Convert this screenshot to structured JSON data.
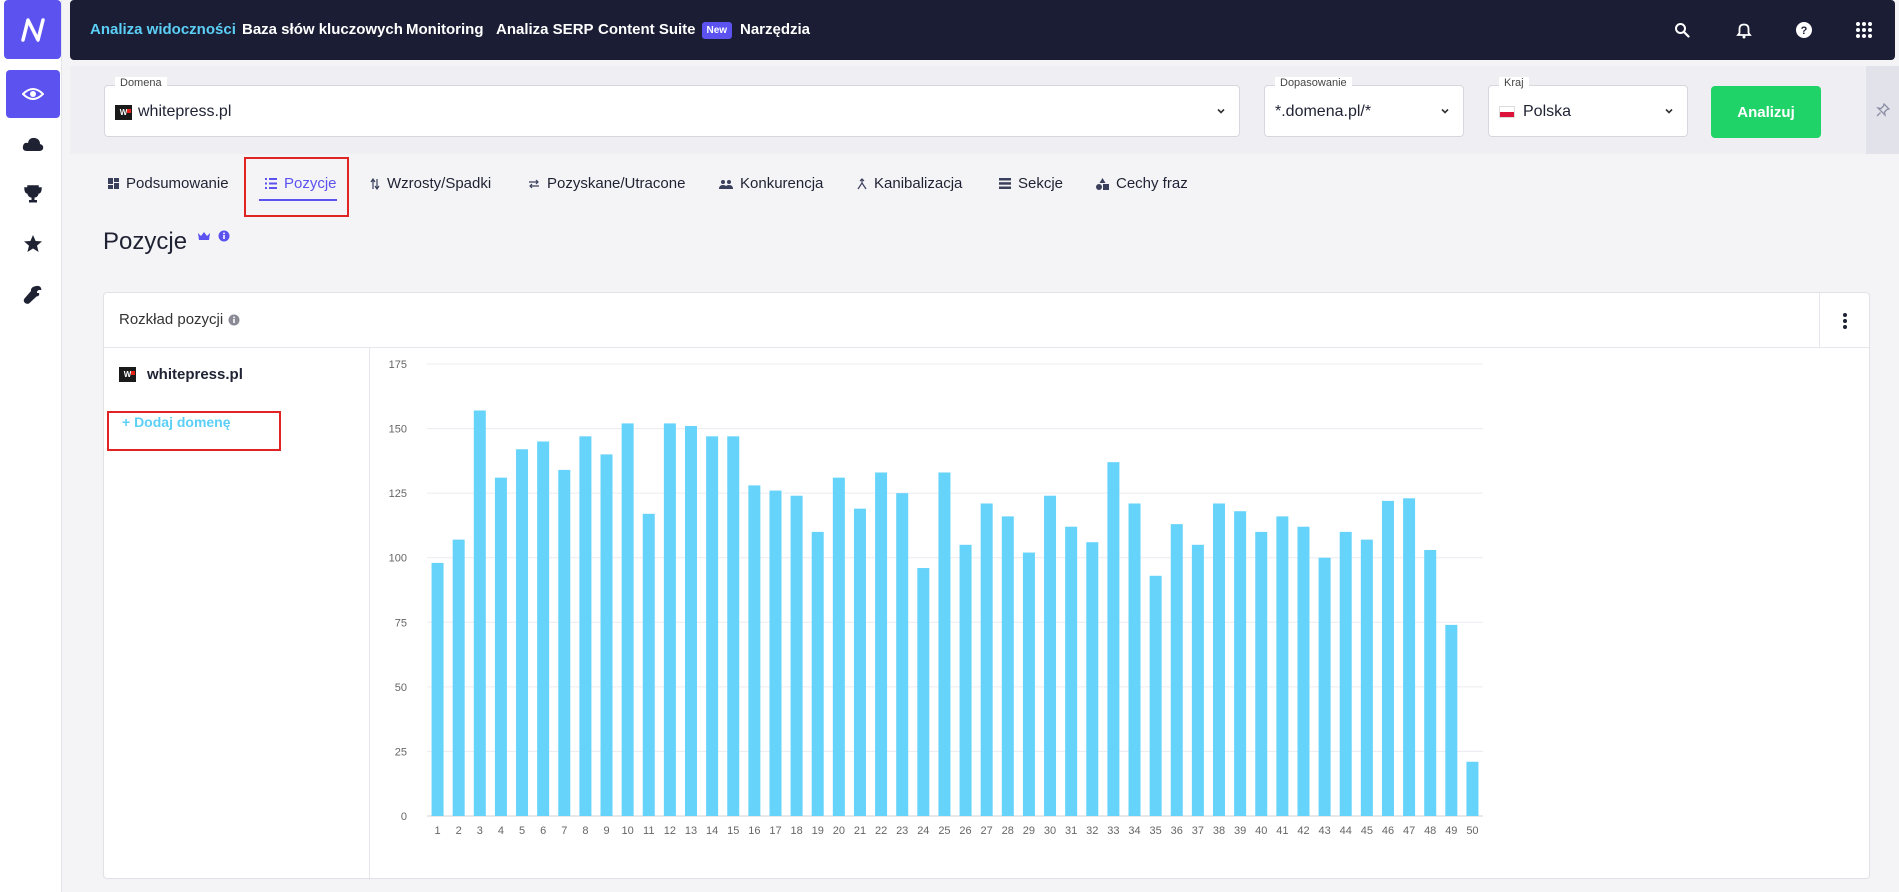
{
  "nav": {
    "items": [
      "Analiza widoczności",
      "Baza słów kluczowych",
      "Monitoring",
      "Analiza SERP",
      "Content Suite",
      "Narzędzia"
    ],
    "new_badge": "New"
  },
  "rail": {
    "icons": [
      "eye-icon",
      "cloud-icon",
      "trophy-icon",
      "star-icon",
      "wrench-icon"
    ]
  },
  "filters": {
    "domain_label": "Domena",
    "domain_value": "whitepress.pl",
    "match_label": "Dopasowanie",
    "match_value": "*.domena.pl/*",
    "country_label": "Kraj",
    "country_value": "Polska",
    "analyze_label": "Analizuj"
  },
  "tabs": [
    "Podsumowanie",
    "Pozycje",
    "Wzrosty/Spadki",
    "Pozyskane/Utracone",
    "Konkurencja",
    "Kanibalizacja",
    "Sekcje",
    "Cechy fraz"
  ],
  "active_tab": "Pozycje",
  "page_title": "Pozycje",
  "card": {
    "title": "Rozkład pozycji",
    "domain": "whitepress.pl",
    "add_domain": "+ Dodaj domenę"
  },
  "colors": {
    "accent": "#5b52f0",
    "bar": "#66d3fa",
    "navy": "#1a1d33",
    "analyze": "#1fd368"
  },
  "chart_data": {
    "type": "bar",
    "categories": [
      "1",
      "2",
      "3",
      "4",
      "5",
      "6",
      "7",
      "8",
      "9",
      "10",
      "11",
      "12",
      "13",
      "14",
      "15",
      "16",
      "17",
      "18",
      "19",
      "20",
      "21",
      "22",
      "23",
      "24",
      "25",
      "26",
      "27",
      "28",
      "29",
      "30",
      "31",
      "32",
      "33",
      "34",
      "35",
      "36",
      "37",
      "38",
      "39",
      "40",
      "41",
      "42",
      "43",
      "44",
      "45",
      "46",
      "47",
      "48",
      "49",
      "50"
    ],
    "values": [
      98,
      107,
      157,
      131,
      142,
      145,
      134,
      147,
      140,
      152,
      117,
      152,
      151,
      147,
      147,
      128,
      126,
      124,
      110,
      131,
      119,
      133,
      125,
      96,
      133,
      105,
      121,
      116,
      102,
      124,
      112,
      106,
      137,
      121,
      93,
      113,
      105,
      121,
      118,
      110,
      116,
      112,
      100,
      110,
      107,
      122,
      123,
      103,
      74,
      21
    ],
    "yticks": [
      0,
      25,
      50,
      75,
      100,
      125,
      150,
      175
    ],
    "ylim": [
      0,
      175
    ],
    "grid": true
  }
}
